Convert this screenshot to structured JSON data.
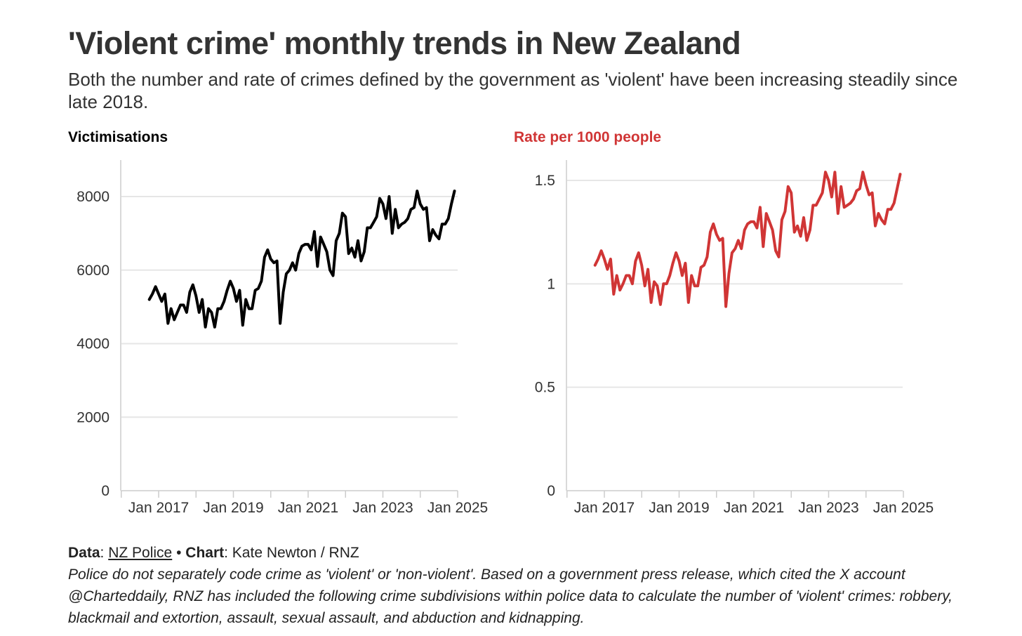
{
  "header": {
    "title": "'Violent crime' monthly trends in New Zealand",
    "subtitle": "Both the number and rate of crimes defined by the government as 'violent' have been increasing steadily since late 2018."
  },
  "chart_data": [
    {
      "type": "line",
      "title": "Victimisations",
      "color": "#000000",
      "ylim": [
        0,
        9000
      ],
      "yticks": [
        0,
        2000,
        4000,
        6000,
        8000
      ],
      "ytick_labels": [
        "0",
        "2000",
        "4000",
        "6000",
        "8000"
      ],
      "xlim": [
        2016.0,
        2025.0
      ],
      "xticks": [
        2017,
        2019,
        2021,
        2023,
        2025
      ],
      "xtick_labels": [
        "Jan 2017",
        "Jan 2019",
        "Jan 2021",
        "Jan 2023",
        "Jan 2025"
      ],
      "x_start": 2016.75,
      "x_step": 0.08333,
      "values": [
        5200,
        5350,
        5550,
        5350,
        5150,
        5350,
        4550,
        4950,
        4650,
        4850,
        5050,
        5050,
        4850,
        5400,
        5600,
        5300,
        4850,
        5200,
        4450,
        4950,
        4850,
        4450,
        4950,
        4950,
        5150,
        5450,
        5700,
        5500,
        5150,
        5450,
        4500,
        5200,
        4950,
        4950,
        5450,
        5500,
        5700,
        6350,
        6550,
        6300,
        6200,
        6250,
        4550,
        5400,
        5900,
        6000,
        6200,
        6000,
        6450,
        6650,
        6700,
        6700,
        6550,
        7050,
        6100,
        6900,
        6700,
        6500,
        6000,
        5850,
        6800,
        7000,
        7550,
        7450,
        6450,
        6600,
        6350,
        6800,
        6250,
        6500,
        7150,
        7150,
        7300,
        7450,
        7950,
        7800,
        7400,
        8000,
        7000,
        7650,
        7150,
        7250,
        7300,
        7400,
        7650,
        7700,
        8150,
        7800,
        7650,
        7700,
        6800,
        7100,
        6950,
        6850,
        7250,
        7250,
        7400,
        7800,
        8150
      ]
    },
    {
      "type": "line",
      "title": "Rate per 1000 people",
      "color": "#d03535",
      "ylim": [
        0,
        1.6
      ],
      "yticks": [
        0,
        0.5,
        1,
        1.5
      ],
      "ytick_labels": [
        "0",
        "0.5",
        "1",
        "1.5"
      ],
      "xlim": [
        2016.0,
        2025.0
      ],
      "xticks": [
        2017,
        2019,
        2021,
        2023,
        2025
      ],
      "xtick_labels": [
        "Jan 2017",
        "Jan 2019",
        "Jan 2021",
        "Jan 2023",
        "Jan 2025"
      ],
      "x_start": 2016.75,
      "x_step": 0.08333,
      "values": [
        1.09,
        1.12,
        1.16,
        1.12,
        1.07,
        1.12,
        0.95,
        1.04,
        0.97,
        1.0,
        1.04,
        1.04,
        1.0,
        1.11,
        1.15,
        1.09,
        0.99,
        1.07,
        0.91,
        1.01,
        0.99,
        0.9,
        1.0,
        1.0,
        1.04,
        1.1,
        1.15,
        1.11,
        1.04,
        1.1,
        0.91,
        1.04,
        0.99,
        0.99,
        1.08,
        1.09,
        1.13,
        1.25,
        1.29,
        1.24,
        1.21,
        1.22,
        0.89,
        1.05,
        1.15,
        1.17,
        1.21,
        1.17,
        1.26,
        1.29,
        1.3,
        1.3,
        1.27,
        1.37,
        1.18,
        1.34,
        1.3,
        1.26,
        1.16,
        1.13,
        1.31,
        1.35,
        1.47,
        1.44,
        1.25,
        1.28,
        1.23,
        1.32,
        1.21,
        1.26,
        1.38,
        1.38,
        1.41,
        1.44,
        1.54,
        1.5,
        1.42,
        1.54,
        1.34,
        1.47,
        1.37,
        1.38,
        1.39,
        1.41,
        1.45,
        1.46,
        1.54,
        1.48,
        1.43,
        1.44,
        1.28,
        1.34,
        1.31,
        1.29,
        1.36,
        1.36,
        1.39,
        1.46,
        1.53
      ]
    }
  ],
  "footer": {
    "data_label": "Data",
    "data_source": "NZ Police",
    "separator": "•",
    "chart_label": "Chart",
    "chart_credit": "Kate Newton / RNZ",
    "note": "Police do not separately code crime as 'violent' or 'non-violent'. Based on a government press release, which cited the X account @Charteddaily, RNZ has included the following crime subdivisions within police data to calculate the number of 'violent' crimes: robbery, blackmail and extortion, assault, sexual assault, and abduction and kidnapping."
  }
}
